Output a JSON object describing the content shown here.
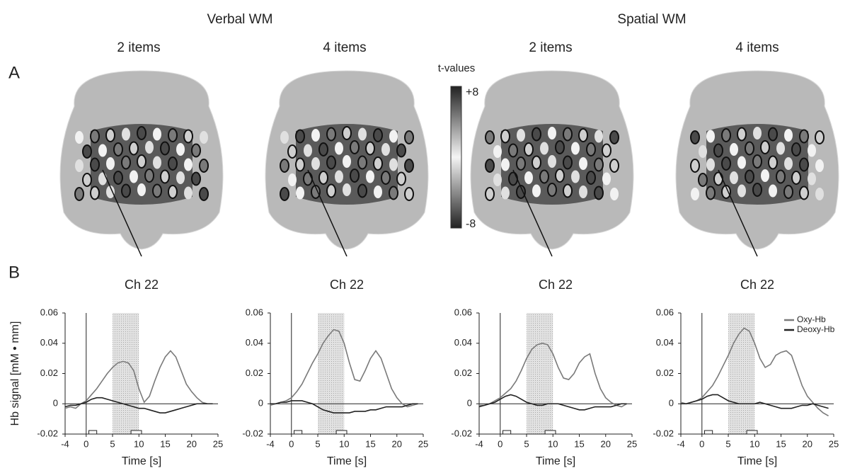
{
  "headers": {
    "groups": [
      "Verbal WM",
      "Spatial WM"
    ],
    "conditions": [
      "2 items",
      "4 items",
      "2 items",
      "4 items"
    ],
    "panels": [
      "A",
      "B"
    ]
  },
  "colorbar": {
    "title": "t-values",
    "labels": [
      "+8",
      "-8"
    ]
  },
  "chart_data": [
    {
      "type": "line",
      "title": "Ch 22",
      "ylabel": "Hb signal [mM • mm]",
      "xlabel": "Time [s]",
      "x": [
        -4,
        -3,
        -2,
        -1,
        0,
        1,
        2,
        3,
        4,
        5,
        6,
        7,
        8,
        9,
        10,
        11,
        12,
        13,
        14,
        15,
        16,
        17,
        18,
        19,
        20,
        21,
        22,
        23,
        24
      ],
      "series": [
        {
          "color": "#7a7a7a",
          "values": [
            -0.003,
            -0.002,
            -0.003,
            0,
            0.002,
            0.006,
            0.01,
            0.015,
            0.02,
            0.024,
            0.027,
            0.028,
            0.027,
            0.022,
            0.01,
            0.001,
            0.005,
            0.015,
            0.024,
            0.031,
            0.035,
            0.031,
            0.022,
            0.013,
            0.008,
            0.004,
            0.001,
            0,
            0
          ]
        },
        {
          "color": "#222222",
          "values": [
            -0.002,
            -0.001,
            -0.001,
            0,
            0.001,
            0.003,
            0.004,
            0.004,
            0.003,
            0.002,
            0.001,
            0,
            -0.001,
            -0.002,
            -0.003,
            -0.003,
            -0.004,
            -0.005,
            -0.006,
            -0.006,
            -0.005,
            -0.004,
            -0.003,
            -0.002,
            -0.001,
            0,
            0,
            0,
            0
          ]
        }
      ],
      "highlight_x": [
        5,
        10
      ],
      "event_boxes": [
        [
          0.5,
          2
        ],
        [
          8.5,
          10.5
        ]
      ],
      "xlim": [
        -4,
        25
      ],
      "xticks": [
        -4,
        0,
        5,
        10,
        15,
        20,
        25
      ],
      "ylim": [
        -0.02,
        0.06
      ],
      "yticks": [
        -0.02,
        0,
        0.02,
        0.04,
        0.06
      ]
    },
    {
      "type": "line",
      "title": "Ch 22",
      "xlabel": "Time [s]",
      "x": [
        -4,
        -3,
        -2,
        -1,
        0,
        1,
        2,
        3,
        4,
        5,
        6,
        7,
        8,
        9,
        10,
        11,
        12,
        13,
        14,
        15,
        16,
        17,
        18,
        19,
        20,
        21,
        22,
        23,
        24
      ],
      "series": [
        {
          "color": "#7a7a7a",
          "values": [
            -0.001,
            0,
            0.001,
            0.002,
            0.004,
            0.008,
            0.013,
            0.02,
            0.027,
            0.033,
            0.04,
            0.045,
            0.049,
            0.048,
            0.04,
            0.027,
            0.016,
            0.015,
            0.022,
            0.03,
            0.035,
            0.03,
            0.02,
            0.01,
            0.004,
            0,
            -0.002,
            -0.001,
            0
          ]
        },
        {
          "color": "#222222",
          "values": [
            0,
            0,
            0.001,
            0.001,
            0.002,
            0.002,
            0.002,
            0.001,
            0,
            -0.002,
            -0.004,
            -0.005,
            -0.006,
            -0.006,
            -0.006,
            -0.006,
            -0.005,
            -0.005,
            -0.005,
            -0.004,
            -0.004,
            -0.003,
            -0.002,
            -0.002,
            -0.002,
            -0.002,
            -0.001,
            0,
            0
          ]
        }
      ],
      "highlight_x": [
        5,
        10
      ],
      "event_boxes": [
        [
          0.5,
          2
        ],
        [
          8.5,
          10.5
        ]
      ],
      "xlim": [
        -4,
        25
      ],
      "xticks": [
        -4,
        0,
        5,
        10,
        15,
        20,
        25
      ],
      "ylim": [
        -0.02,
        0.06
      ],
      "yticks": [
        -0.02,
        0,
        0.02,
        0.04,
        0.06
      ]
    },
    {
      "type": "line",
      "title": "Ch 22",
      "xlabel": "Time [s]",
      "x": [
        -4,
        -3,
        -2,
        -1,
        0,
        1,
        2,
        3,
        4,
        5,
        6,
        7,
        8,
        9,
        10,
        11,
        12,
        13,
        14,
        15,
        16,
        17,
        18,
        19,
        20,
        21,
        22,
        23,
        24
      ],
      "series": [
        {
          "color": "#7a7a7a",
          "values": [
            -0.001,
            -0.001,
            0,
            0.002,
            0.004,
            0.007,
            0.01,
            0.015,
            0.022,
            0.03,
            0.036,
            0.039,
            0.04,
            0.039,
            0.033,
            0.024,
            0.017,
            0.016,
            0.02,
            0.027,
            0.031,
            0.033,
            0.02,
            0.01,
            0.004,
            0.001,
            -0.001,
            -0.002,
            0
          ]
        },
        {
          "color": "#222222",
          "values": [
            -0.002,
            -0.001,
            0,
            0.001,
            0.003,
            0.005,
            0.006,
            0.005,
            0.003,
            0.001,
            0,
            -0.001,
            -0.001,
            0,
            0,
            0,
            -0.001,
            -0.002,
            -0.003,
            -0.004,
            -0.004,
            -0.003,
            -0.002,
            -0.002,
            -0.002,
            -0.002,
            -0.001,
            0,
            0
          ]
        }
      ],
      "highlight_x": [
        5,
        10
      ],
      "event_boxes": [
        [
          0.5,
          2
        ],
        [
          8.5,
          10.5
        ]
      ],
      "xlim": [
        -4,
        25
      ],
      "xticks": [
        -4,
        0,
        5,
        10,
        15,
        20,
        25
      ],
      "ylim": [
        -0.02,
        0.06
      ],
      "yticks": [
        -0.02,
        0,
        0.02,
        0.04,
        0.06
      ]
    },
    {
      "type": "line",
      "title": "Ch 22",
      "xlabel": "Time [s]",
      "legend": "upper right",
      "x": [
        -4,
        -3,
        -2,
        -1,
        0,
        1,
        2,
        3,
        4,
        5,
        6,
        7,
        8,
        9,
        10,
        11,
        12,
        13,
        14,
        15,
        16,
        17,
        18,
        19,
        20,
        21,
        22,
        23,
        24
      ],
      "series": [
        {
          "name": "Oxy-Hb",
          "color": "#7a7a7a",
          "values": [
            0.001,
            0,
            0.001,
            0.002,
            0.004,
            0.008,
            0.012,
            0.018,
            0.025,
            0.032,
            0.04,
            0.046,
            0.05,
            0.048,
            0.04,
            0.03,
            0.024,
            0.026,
            0.032,
            0.034,
            0.035,
            0.032,
            0.022,
            0.012,
            0.005,
            0.001,
            -0.003,
            -0.006,
            -0.008
          ]
        },
        {
          "name": "Deoxy-Hb",
          "color": "#222222",
          "values": [
            0,
            0,
            0.001,
            0.002,
            0.003,
            0.005,
            0.006,
            0.006,
            0.004,
            0.002,
            0.001,
            0,
            0,
            0,
            0,
            0.001,
            0,
            -0.001,
            -0.002,
            -0.003,
            -0.003,
            -0.003,
            -0.002,
            -0.001,
            -0.001,
            0,
            -0.001,
            -0.002,
            -0.003
          ]
        }
      ],
      "highlight_x": [
        5,
        10
      ],
      "event_boxes": [
        [
          0.5,
          2
        ],
        [
          8.5,
          10.5
        ]
      ],
      "xlim": [
        -4,
        25
      ],
      "xticks": [
        -4,
        0,
        5,
        10,
        15,
        20,
        25
      ],
      "ylim": [
        -0.02,
        0.06
      ],
      "yticks": [
        -0.02,
        0,
        0.02,
        0.04,
        0.06
      ]
    }
  ]
}
